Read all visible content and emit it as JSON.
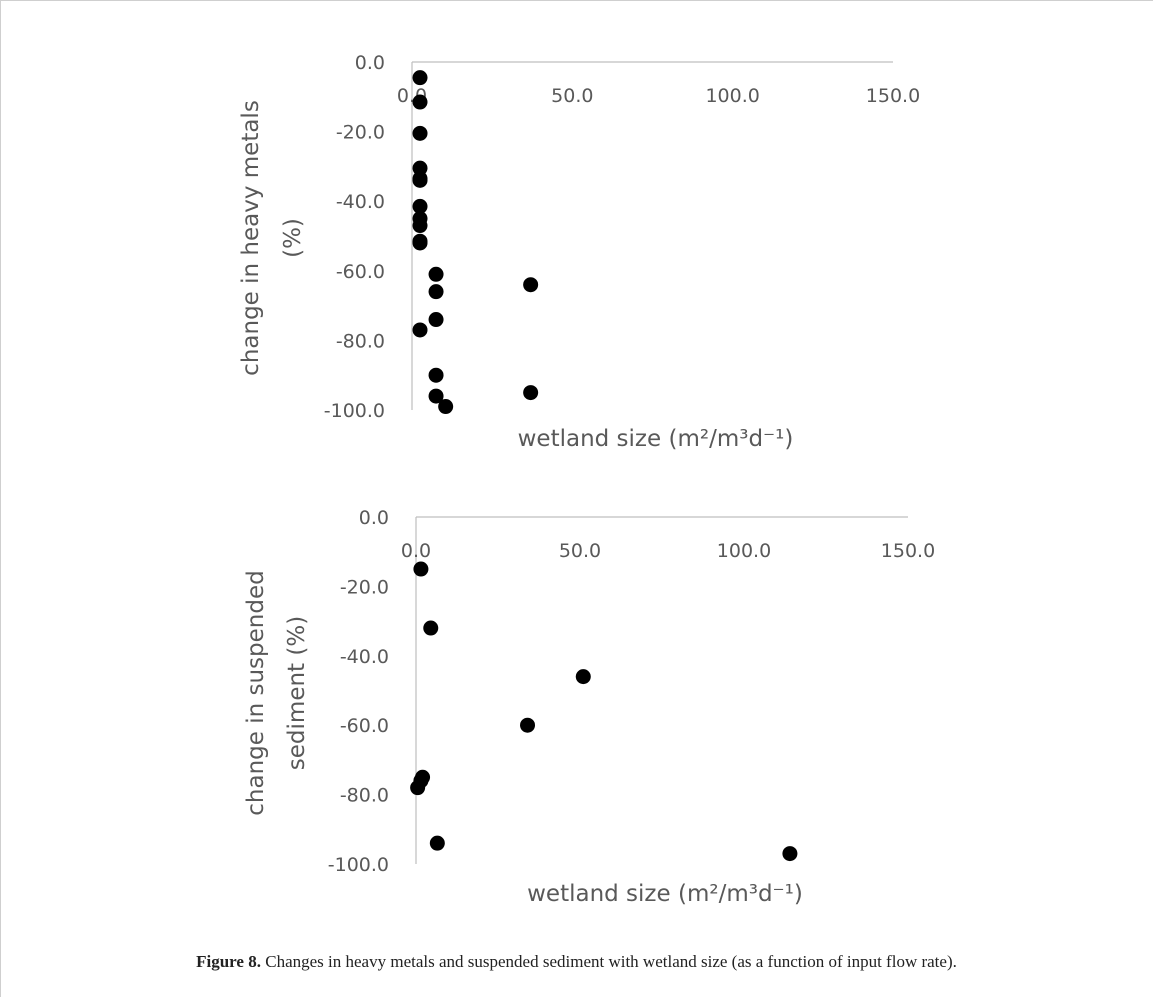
{
  "caption": {
    "label": "Figure 8.",
    "text": "Changes in heavy metals and suspended sediment with wetland size (as a function of input flow rate)."
  },
  "chart_data": [
    {
      "type": "scatter",
      "xlabel": "wetland size (m²/m³d⁻¹)",
      "ylabel_lines": [
        "change in heavy metals",
        "(%)"
      ],
      "xlim": [
        0,
        150
      ],
      "ylim": [
        -100,
        0
      ],
      "x_ticks": [
        "0.0",
        "50.0",
        "100.0",
        "150.0"
      ],
      "y_ticks": [
        "0.0",
        "-20.0",
        "-40.0",
        "-60.0",
        "-80.0",
        "-100.0"
      ],
      "marker_color": "#000000",
      "x": [
        2.5,
        2.5,
        2.5,
        2.5,
        2.5,
        2.5,
        2.5,
        2.5,
        2.5,
        2.5,
        2.5,
        7.5,
        7.5,
        7.5,
        2.5,
        7.5,
        7.5,
        10.5,
        37.0,
        37.0
      ],
      "y": [
        -4.5,
        -11.5,
        -20.5,
        -30.5,
        -33.5,
        -34.0,
        -41.5,
        -45.0,
        -47.0,
        -52.0,
        -51.5,
        -61.0,
        -66.0,
        -74.0,
        -77.0,
        -90.0,
        -96.0,
        -99.0,
        -64.0,
        -95.0
      ]
    },
    {
      "type": "scatter",
      "xlabel": "wetland size (m²/m³d⁻¹)",
      "ylabel_lines": [
        "change in suspended",
        "sediment (%)"
      ],
      "xlim": [
        0,
        150
      ],
      "ylim": [
        -100,
        0
      ],
      "x_ticks": [
        "0.0",
        "50.0",
        "100.0",
        "150.0"
      ],
      "y_ticks": [
        "0.0",
        "-20.0",
        "-40.0",
        "-60.0",
        "-80.0",
        "-100.0"
      ],
      "marker_color": "#000000",
      "x": [
        1.5,
        4.5,
        51.0,
        34.0,
        2.0,
        1.5,
        0.5,
        6.5,
        114.0
      ],
      "y": [
        -15.0,
        -32.0,
        -46.0,
        -60.0,
        -75.0,
        -76.0,
        -78.0,
        -94.0,
        -97.0
      ]
    }
  ]
}
